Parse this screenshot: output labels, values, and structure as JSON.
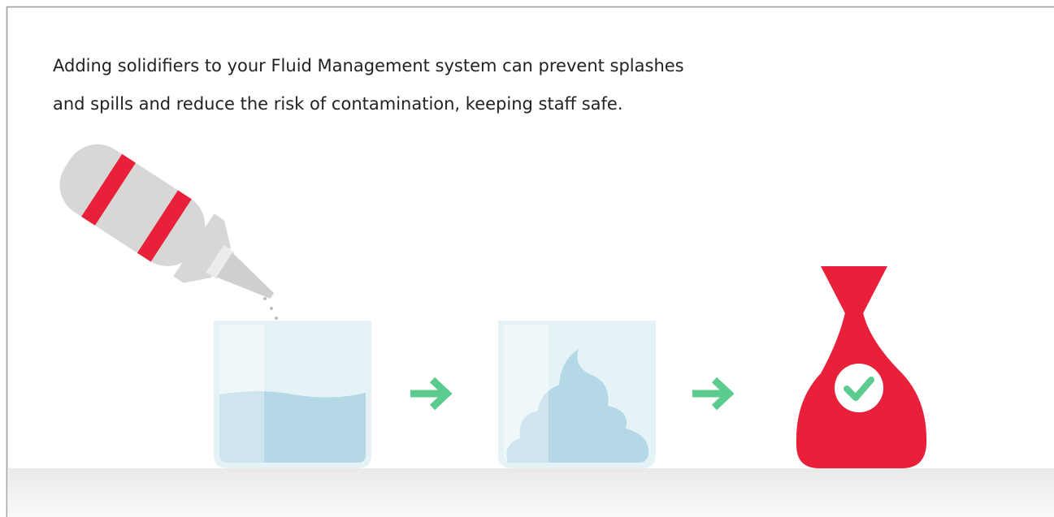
{
  "text": {
    "lines": [
      "Adding solidifiers to your Fluid Management system can prevent splashes",
      "and spills and reduce the risk of contamination, keeping staff safe."
    ]
  }
}
